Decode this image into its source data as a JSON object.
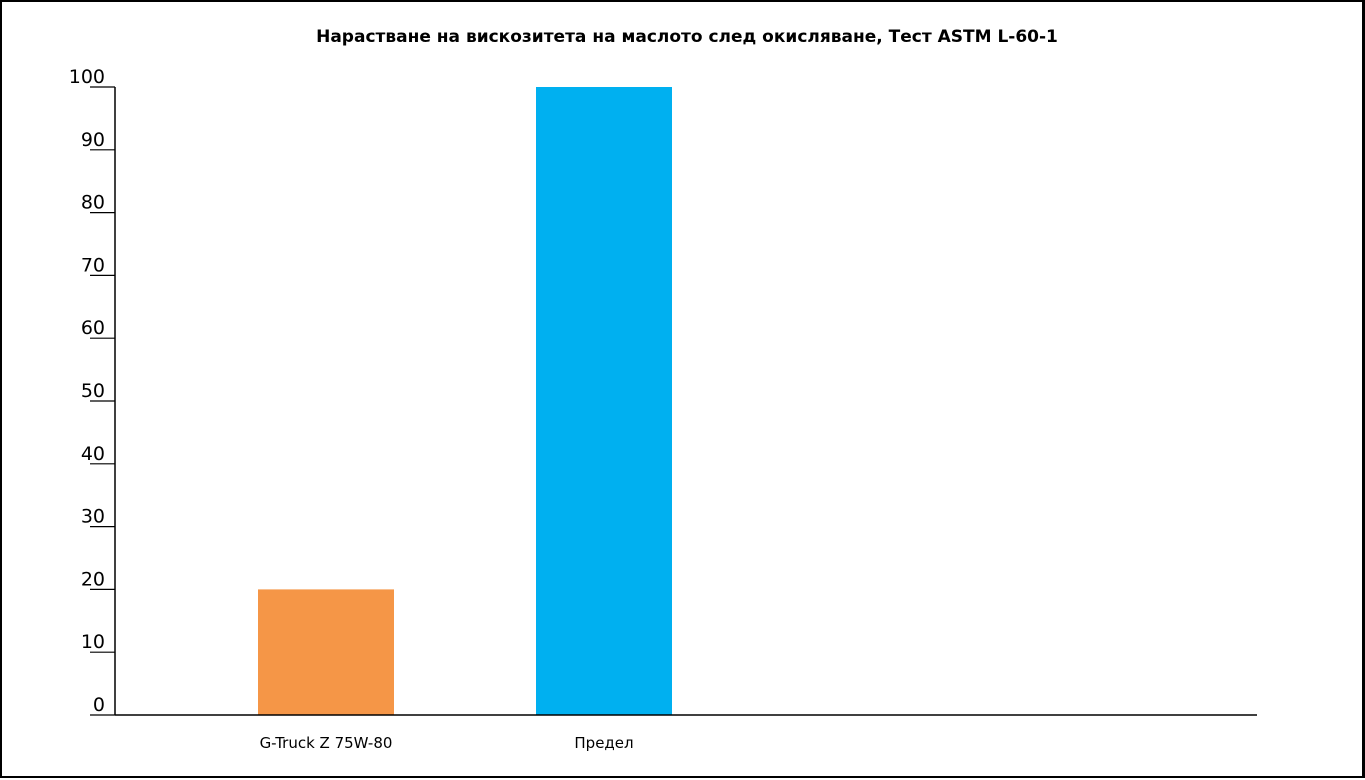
{
  "chart_data": {
    "type": "bar",
    "title": "Нарастване на вискозитета на маслото след окисляване, Тест ASTM L-60-1",
    "xlabel": "",
    "ylabel": "",
    "categories": [
      "G-Truck Z 75W-80",
      "Предел"
    ],
    "values": [
      20,
      100
    ],
    "bar_colors": [
      "#f59647",
      "#00b0f0"
    ],
    "ylim": [
      0,
      100
    ],
    "yticks": [
      0,
      10,
      20,
      30,
      40,
      50,
      60,
      70,
      80,
      90,
      100
    ],
    "grid": false,
    "legend": "none"
  }
}
